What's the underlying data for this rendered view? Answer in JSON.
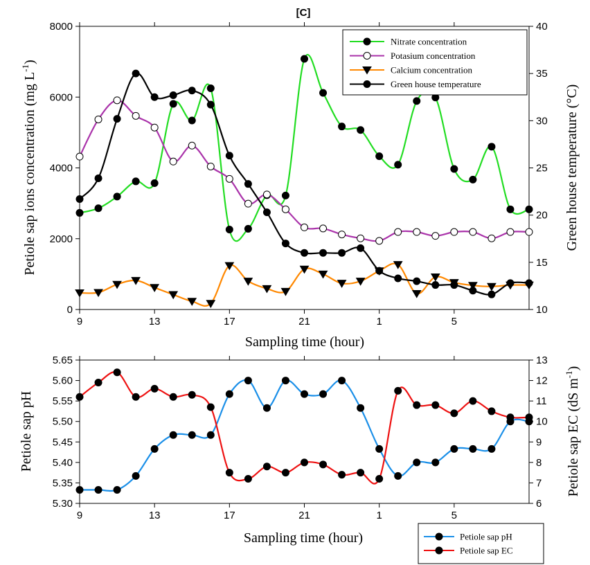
{
  "chart_data": [
    {
      "type": "line",
      "title": "[C]",
      "xlabel": "Sampling time (hour)",
      "ylabel_left_main": "Petiole sap ions concentration (mg L",
      "ylabel_left_sup": "-1",
      "ylabel_left_end": ")",
      "ylabel_right": "Green house temperature (°C)",
      "x_tick_labels": [
        "9",
        "13",
        "17",
        "21",
        "1",
        "5"
      ],
      "x_tick_positions": [
        0,
        4,
        8,
        12,
        16,
        20
      ],
      "xlim": [
        0,
        24
      ],
      "ylim_left": [
        0,
        8000
      ],
      "yticks_left": [
        "0",
        "2000",
        "4000",
        "6000",
        "8000"
      ],
      "ylim_right": [
        10,
        40
      ],
      "yticks_right": [
        "10",
        "15",
        "20",
        "25",
        "30",
        "35",
        "40"
      ],
      "legend_position": "top-right",
      "x": [
        0,
        1,
        2,
        3,
        4,
        5,
        6,
        7,
        8,
        9,
        10,
        11,
        12,
        13,
        14,
        15,
        16,
        17,
        18,
        19,
        20,
        21,
        22,
        23,
        24
      ],
      "series": [
        {
          "name": "Nitrate concentration",
          "axis": "left",
          "color": "#22dd22",
          "marker": "filled-circle",
          "values": [
            2730,
            2860,
            3190,
            3620,
            3570,
            5810,
            5340,
            6250,
            2260,
            2280,
            3230,
            3220,
            7080,
            6120,
            5170,
            5070,
            4330,
            4090,
            5890,
            5990,
            3970,
            3670,
            4600,
            2830,
            2830
          ]
        },
        {
          "name": "Potasium concentration",
          "axis": "left",
          "color": "#aa33aa",
          "marker": "open-circle",
          "values": [
            4320,
            5370,
            5910,
            5470,
            5140,
            4180,
            4630,
            4040,
            3690,
            2990,
            3250,
            2830,
            2320,
            2290,
            2120,
            2010,
            1940,
            2190,
            2190,
            2080,
            2190,
            2190,
            2010,
            2190,
            2190
          ]
        },
        {
          "name": "Calcium concentration",
          "axis": "left",
          "color": "#ff8800",
          "marker": "triangle-down",
          "values": [
            470,
            480,
            710,
            820,
            620,
            420,
            230,
            170,
            1240,
            800,
            590,
            510,
            1140,
            1000,
            740,
            800,
            1090,
            1270,
            450,
            920,
            760,
            680,
            650,
            690,
            690
          ]
        },
        {
          "name": "Green house temperature",
          "axis": "right",
          "color": "#000000",
          "marker": "filled-circle",
          "values": [
            21.7,
            23.9,
            30.2,
            35.0,
            32.5,
            32.7,
            33.2,
            31.7,
            26.3,
            23.3,
            20.3,
            17.0,
            16.0,
            16.0,
            16.0,
            16.5,
            14.1,
            13.3,
            13.0,
            12.6,
            12.6,
            12.0,
            11.6,
            12.8,
            12.8
          ]
        }
      ]
    },
    {
      "type": "line",
      "xlabel": "Sampling time (hour)",
      "ylabel_left": "Petiole sap pH",
      "ylabel_right_main": "Petiole sap EC (dS m",
      "ylabel_right_sup": "-1",
      "ylabel_right_end": ")",
      "x_tick_labels": [
        "9",
        "13",
        "17",
        "21",
        "1",
        "5"
      ],
      "x_tick_positions": [
        0,
        4,
        8,
        12,
        16,
        20
      ],
      "xlim": [
        0,
        24
      ],
      "ylim_left": [
        5.3,
        5.65
      ],
      "yticks_left": [
        "5.30",
        "5.35",
        "5.40",
        "5.45",
        "5.50",
        "5.55",
        "5.60",
        "5.65"
      ],
      "ylim_right": [
        6,
        13
      ],
      "yticks_right": [
        "6",
        "7",
        "8",
        "9",
        "10",
        "11",
        "12",
        "13"
      ],
      "legend_position": "bottom-right-outside",
      "x": [
        0,
        1,
        2,
        3,
        4,
        5,
        6,
        7,
        8,
        9,
        10,
        11,
        12,
        13,
        14,
        15,
        16,
        17,
        18,
        19,
        20,
        21,
        22,
        23,
        24
      ],
      "series": [
        {
          "name": "Petiole sap pH",
          "axis": "left",
          "color": "#1a8fe8",
          "marker": "filled-circle",
          "values": [
            5.333,
            5.333,
            5.333,
            5.367,
            5.433,
            5.467,
            5.467,
            5.467,
            5.567,
            5.6,
            5.533,
            5.6,
            5.567,
            5.567,
            5.6,
            5.533,
            5.433,
            5.367,
            5.4,
            5.4,
            5.433,
            5.433,
            5.433,
            5.5,
            5.5
          ]
        },
        {
          "name": "Petiole sap EC",
          "axis": "right",
          "color": "#ee1111",
          "marker": "filled-circle",
          "values": [
            11.2,
            11.9,
            12.4,
            11.2,
            11.6,
            11.2,
            11.3,
            10.7,
            7.5,
            7.2,
            7.8,
            7.5,
            8.0,
            7.9,
            7.4,
            7.5,
            7.2,
            11.5,
            10.8,
            10.8,
            10.4,
            11.0,
            10.5,
            10.2,
            10.2
          ]
        }
      ]
    }
  ]
}
